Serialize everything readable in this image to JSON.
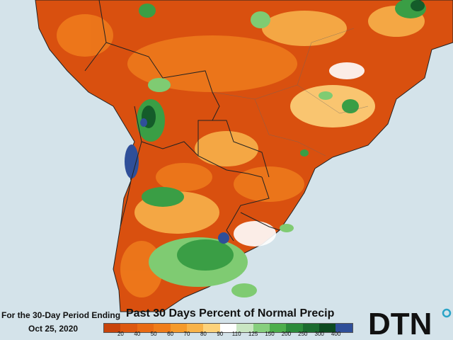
{
  "caption": {
    "period_line1": "For the 30-Day Period Ending",
    "period_line2": "Oct 25, 2020"
  },
  "title": "Past 30 Days Percent of Normal Precip",
  "legend": {
    "colors": [
      "#c8440b",
      "#dd5810",
      "#e86a14",
      "#ef7d1b",
      "#f59a2a",
      "#f8b349",
      "#fdd27b",
      "#ffffff",
      "#c9e6c2",
      "#86cf7d",
      "#4cae4b",
      "#2b8b3a",
      "#1a6b2f",
      "#0c4a20",
      "#2f4f99"
    ],
    "ticks": [
      "20",
      "40",
      "50",
      "60",
      "70",
      "80",
      "90",
      "110",
      "125",
      "150",
      "200",
      "250",
      "300",
      "400"
    ]
  },
  "map_colors": {
    "ocean": "#d4e3ea",
    "land_dry": "#d9500f",
    "land_mid": "#ee7a1c",
    "land_light": "#f8b14a",
    "wet_light": "#7fcb72",
    "wet": "#3a9e45",
    "wet_dark": "#145c2a",
    "flood": "#2f4f99"
  },
  "logo": {
    "text": "DTN",
    "accent": "#2aa4c7"
  }
}
